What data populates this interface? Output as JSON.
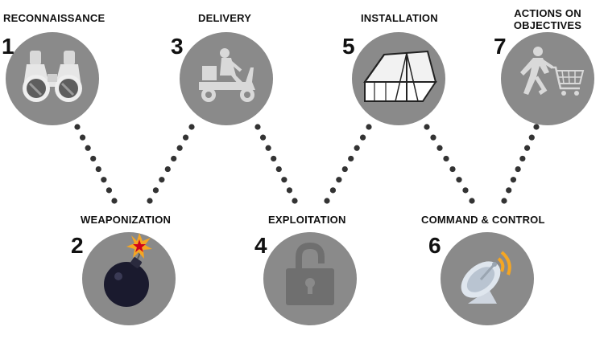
{
  "stages": [
    {
      "number": "1",
      "label": "RECONNAISSANCE",
      "icon": "binoculars-icon"
    },
    {
      "number": "2",
      "label": "WEAPONIZATION",
      "icon": "bomb-icon"
    },
    {
      "number": "3",
      "label": "DELIVERY",
      "icon": "scooter-icon"
    },
    {
      "number": "4",
      "label": "EXPLOITATION",
      "icon": "padlock-icon"
    },
    {
      "number": "5",
      "label": "INSTALLATION",
      "icon": "tent-icon"
    },
    {
      "number": "6",
      "label": "COMMAND & CONTROL",
      "icon": "satellite-dish-icon"
    },
    {
      "number": "7",
      "label": "ACTIONS ON OBJECTIVES",
      "icon": "shopping-cart-icon"
    }
  ],
  "colors": {
    "circle": "#8a8a8a",
    "dots": "#333333",
    "text": "#111111",
    "icon_light": "#d9d9d9",
    "icon_dark": "#6f6f6f",
    "bomb": "#1a1a2e",
    "spark_orange": "#f5a623",
    "spark_red": "#d0021b",
    "signal": "#f5a623"
  }
}
